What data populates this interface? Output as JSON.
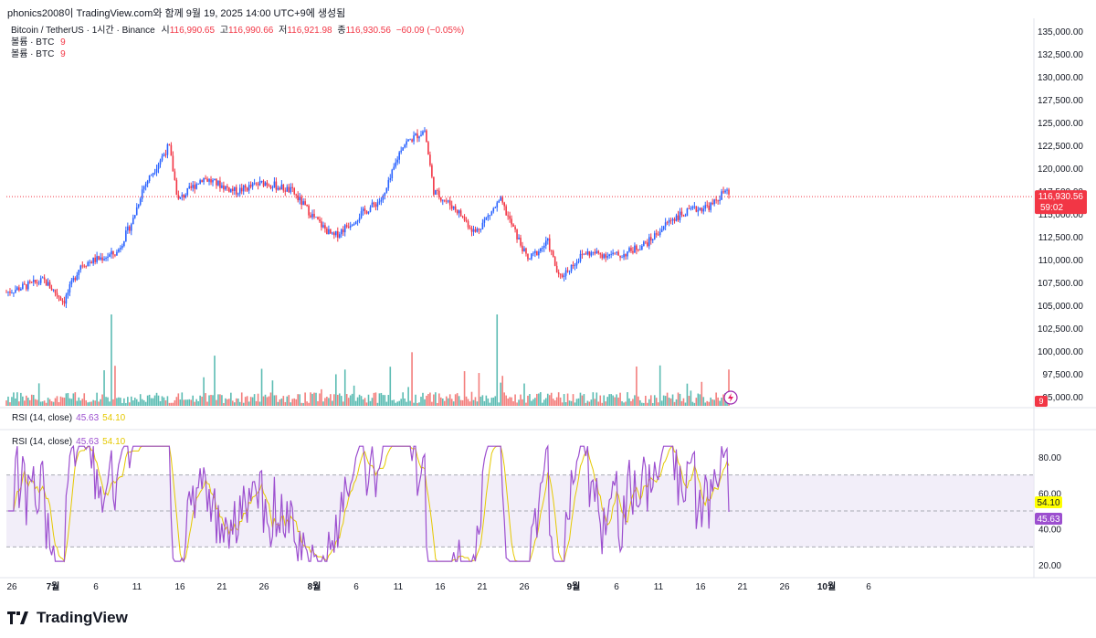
{
  "header": {
    "title": "phonics2008이 TradingView.com와 함께 9월 19, 2025 14:00 UTC+9에 생성됨"
  },
  "legend": {
    "symbol": "Bitcoin / TetherUS · 1시간 · Binance",
    "o_label": "시",
    "o_value": "116,990.65",
    "h_label": "고",
    "h_value": "116,990.66",
    "l_label": "저",
    "l_value": "116,921.98",
    "c_label": "종",
    "c_value": "116,930.56",
    "change": "−60.09 (−0.05%)",
    "volume_rows": [
      {
        "label": "볼륨 · BTC",
        "value": "9"
      },
      {
        "label": "볼륨 · BTC",
        "value": "9"
      }
    ]
  },
  "rsi_panes": [
    {
      "label": "RSI (14, close)",
      "rsi": "45.63",
      "ma": "54.10"
    },
    {
      "label": "RSI (14, close)",
      "rsi": "45.63",
      "ma": "54.10"
    }
  ],
  "price_axis": {
    "ticks": [
      "135,000.00",
      "132,500.00",
      "130,000.00",
      "127,500.00",
      "125,000.00",
      "122,500.00",
      "120,000.00",
      "117,500.00",
      "115,000.00",
      "112,500.00",
      "110,000.00",
      "107,500.00",
      "105,000.00",
      "102,500.00",
      "100,000.00",
      "97,500.00",
      "95,000.00"
    ],
    "last_price": "116,930.56",
    "countdown": "59:02",
    "volume_badge": "9"
  },
  "rsi_axis": {
    "ticks": [
      "80.00",
      "60.00",
      "40.00",
      "20.00"
    ],
    "ma_badge": "54.10",
    "rsi_badge": "45.63"
  },
  "time_axis": {
    "labels": [
      "26",
      "7월",
      "6",
      "11",
      "16",
      "21",
      "26",
      "8월",
      "6",
      "11",
      "16",
      "21",
      "26",
      "9월",
      "6",
      "11",
      "16",
      "21",
      "26",
      "10월",
      "6"
    ]
  },
  "brand": {
    "name": "TradingView"
  },
  "colors": {
    "up": "#26a69a",
    "down": "#ef5350",
    "candle_up": "#2962ff",
    "candle_down": "#f23645",
    "rsi": "#9c4fcf",
    "rsi_ma": "#e5c800",
    "price_line": "#f23645"
  },
  "chart_data": {
    "type": "candlestick",
    "title": "Bitcoin / TetherUS · 1시간 · Binance",
    "y_range": [
      95000,
      135000
    ],
    "close_path_keypoints": [
      {
        "x": "Jun 26",
        "y": 106500
      },
      {
        "x": "Jul 1",
        "y": 107800
      },
      {
        "x": "Jul 4",
        "y": 105500
      },
      {
        "x": "Jul 7",
        "y": 109500
      },
      {
        "x": "Jul 10",
        "y": 110800
      },
      {
        "x": "Jul 11",
        "y": 114500
      },
      {
        "x": "Jul 12",
        "y": 117800
      },
      {
        "x": "Jul 14",
        "y": 122500
      },
      {
        "x": "Jul 15",
        "y": 116500
      },
      {
        "x": "Jul 18",
        "y": 119000
      },
      {
        "x": "Jul 21",
        "y": 117500
      },
      {
        "x": "Jul 24",
        "y": 118500
      },
      {
        "x": "Jul 26",
        "y": 117500
      },
      {
        "x": "Aug 1",
        "y": 114500
      },
      {
        "x": "Aug 3",
        "y": 112500
      },
      {
        "x": "Aug 6",
        "y": 115000
      },
      {
        "x": "Aug 9",
        "y": 116800
      },
      {
        "x": "Aug 13",
        "y": 122500
      },
      {
        "x": "Aug 14",
        "y": 124200
      },
      {
        "x": "Aug 16",
        "y": 117500
      },
      {
        "x": "Aug 19",
        "y": 115500
      },
      {
        "x": "Aug 22",
        "y": 113000
      },
      {
        "x": "Aug 23",
        "y": 116500
      },
      {
        "x": "Aug 26",
        "y": 110000
      },
      {
        "x": "Aug 29",
        "y": 112000
      },
      {
        "x": "Sep 1",
        "y": 108000
      },
      {
        "x": "Sep 3",
        "y": 110800
      },
      {
        "x": "Sep 6",
        "y": 110500
      },
      {
        "x": "Sep 9",
        "y": 112000
      },
      {
        "x": "Sep 12",
        "y": 114500
      },
      {
        "x": "Sep 15",
        "y": 115500
      },
      {
        "x": "Sep 17",
        "y": 116000
      },
      {
        "x": "Sep 18",
        "y": 117500
      },
      {
        "x": "Sep 19",
        "y": 116930.56
      }
    ]
  }
}
